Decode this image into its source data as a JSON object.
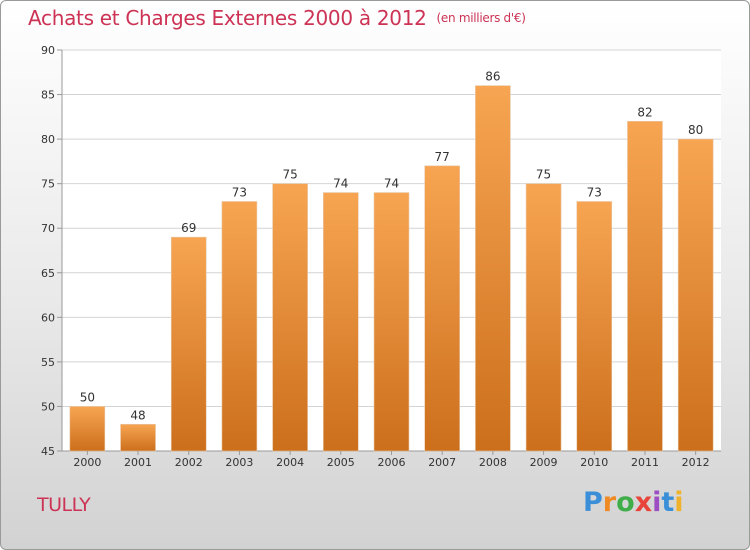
{
  "title": {
    "main": "Achats et Charges Externes 2000 à 2012",
    "unit": "(en milliers d'€)"
  },
  "commune": "TULLY",
  "logo_text": "Proxiti",
  "colors": {
    "title": "#cc3355",
    "bar_top": "#f7a552",
    "bar_bottom": "#cc6f1c",
    "grid": "#d4d4d4",
    "axis": "#9a9a9a"
  },
  "chart_data": {
    "type": "bar",
    "categories": [
      "2000",
      "2001",
      "2002",
      "2003",
      "2004",
      "2005",
      "2006",
      "2007",
      "2008",
      "2009",
      "2010",
      "2011",
      "2012"
    ],
    "values": [
      50,
      48,
      69,
      73,
      75,
      74,
      74,
      77,
      86,
      75,
      73,
      82,
      80
    ],
    "ylim": [
      45,
      90
    ],
    "yticks": [
      45,
      50,
      55,
      60,
      65,
      70,
      75,
      80,
      85,
      90
    ],
    "grid": true,
    "xlabel": "",
    "ylabel": ""
  }
}
